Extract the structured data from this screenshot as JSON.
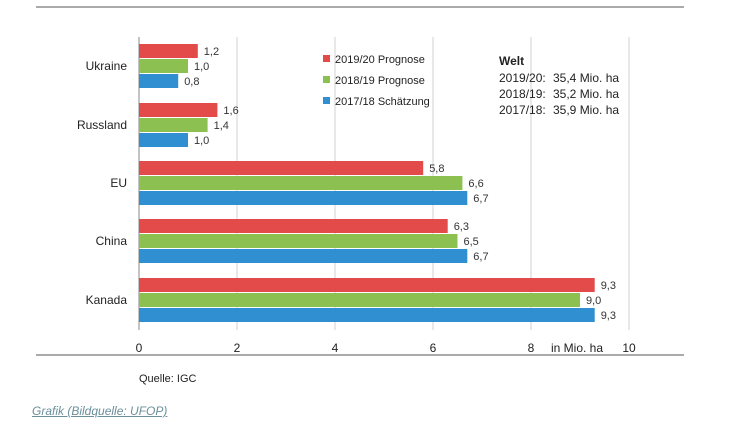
{
  "chart_data": {
    "type": "bar",
    "orientation": "horizontal",
    "categories": [
      "Ukraine",
      "Russland",
      "EU",
      "China",
      "Kanada"
    ],
    "series": [
      {
        "name": "2019/20 Prognose",
        "color": "#e34a4a",
        "values": [
          1.2,
          1.6,
          5.8,
          6.3,
          9.3
        ],
        "labels": [
          "1,2",
          "1,6",
          "5,8",
          "6,3",
          "9,3"
        ]
      },
      {
        "name": "2018/19 Prognose",
        "color": "#8cc152",
        "values": [
          1.0,
          1.4,
          6.6,
          6.5,
          9.0
        ],
        "labels": [
          "1,0",
          "1,4",
          "6,6",
          "6,5",
          "9,0"
        ]
      },
      {
        "name": "2017/18 Schätzung",
        "color": "#2f8fd0",
        "values": [
          0.8,
          1.0,
          6.7,
          6.7,
          9.3
        ],
        "labels": [
          "0,8",
          "1,0",
          "6,7",
          "6,7",
          "9,3"
        ]
      }
    ],
    "xlim": [
      0,
      10
    ],
    "xticks": [
      0,
      2,
      4,
      6,
      8,
      10
    ],
    "xtick_labels": [
      "0",
      "2",
      "4",
      "6",
      "8",
      "10"
    ],
    "xlabel": "in Mio. ha",
    "grid": true,
    "legend_position": "top-center"
  },
  "welt_box": {
    "title": "Welt",
    "rows": [
      {
        "label": "2019/20:",
        "value": "35,4 Mio. ha"
      },
      {
        "label": "2018/19:",
        "value": "35,2 Mio. ha"
      },
      {
        "label": "2017/18:",
        "value": "35,9 Mio. ha"
      }
    ]
  },
  "source": "Quelle:  IGC",
  "caption": "Grafik (Bildquelle: UFOP)"
}
